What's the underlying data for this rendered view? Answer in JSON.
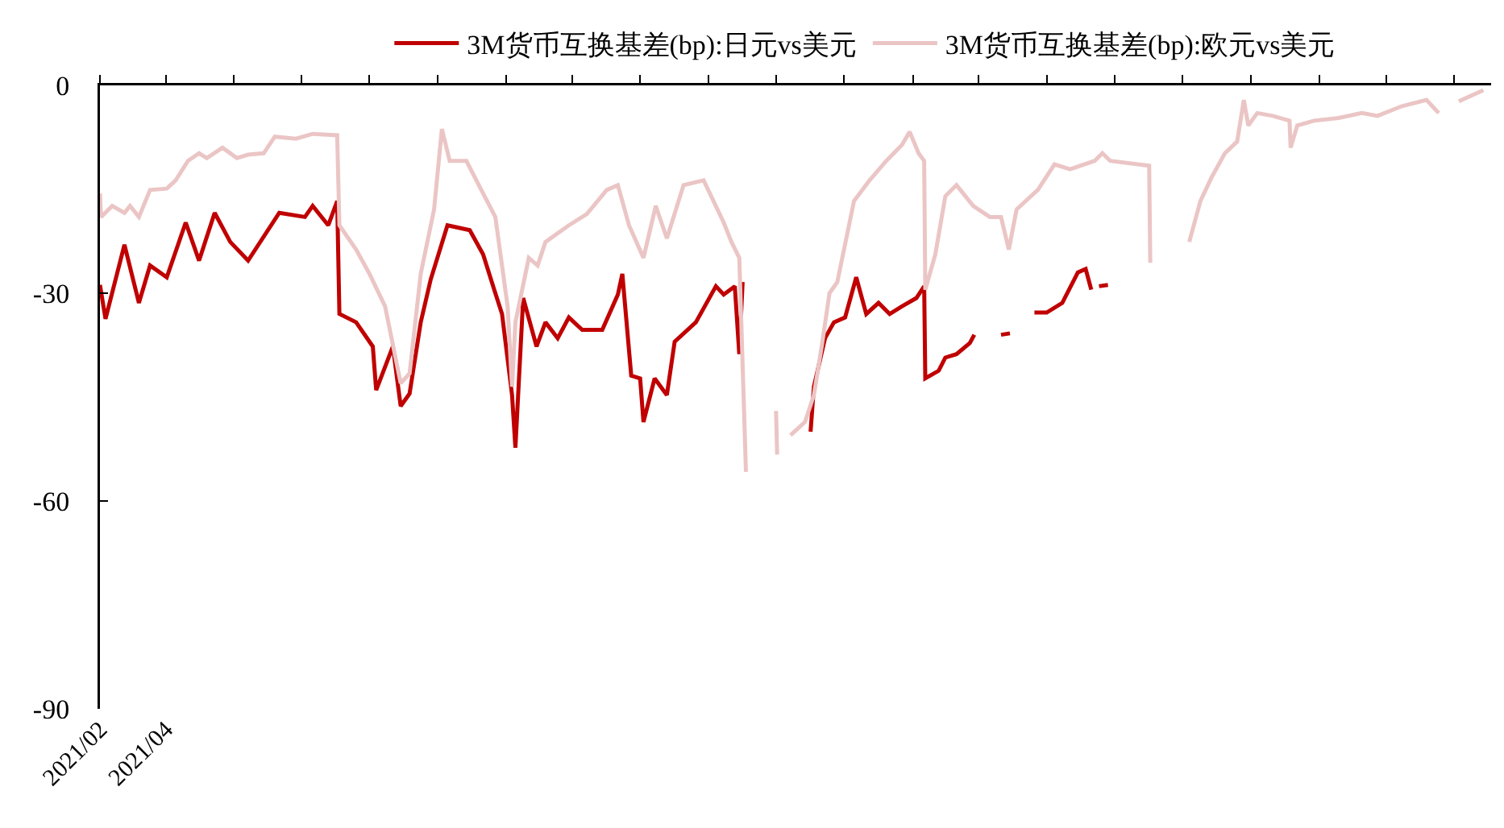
{
  "chart_data": {
    "type": "line",
    "xlim": [
      "2021-02-01",
      "2024-07-04"
    ],
    "xticks": [
      {
        "value": "2021-02-01",
        "label": "2021/02"
      },
      {
        "value": "2021-04-01",
        "label": "2021/04"
      },
      {
        "value": "2021-06-01",
        "label": null
      },
      {
        "value": "2021-08-01",
        "label": null
      },
      {
        "value": "2021-10-01",
        "label": null
      },
      {
        "value": "2021-12-01",
        "label": null
      },
      {
        "value": "2022-02-01",
        "label": null
      },
      {
        "value": "2022-04-01",
        "label": null
      },
      {
        "value": "2022-06-01",
        "label": null
      },
      {
        "value": "2022-08-01",
        "label": null
      },
      {
        "value": "2022-10-01",
        "label": null
      },
      {
        "value": "2022-12-01",
        "label": null
      },
      {
        "value": "2023-02-01",
        "label": null
      },
      {
        "value": "2023-04-01",
        "label": null
      },
      {
        "value": "2023-06-01",
        "label": null
      },
      {
        "value": "2023-08-01",
        "label": null
      },
      {
        "value": "2023-10-01",
        "label": null
      },
      {
        "value": "2023-12-01",
        "label": null
      },
      {
        "value": "2024-02-01",
        "label": null
      },
      {
        "value": "2024-04-01",
        "label": null
      },
      {
        "value": "2024-06-01",
        "label": null
      }
    ],
    "ylim": [
      -90,
      0
    ],
    "yticks": [
      -90,
      -60,
      -30,
      0
    ],
    "grid": false,
    "legend": "top",
    "marker": "none",
    "line_style": "solid",
    "series": [
      {
        "name": "3M货币互换基差(bp):日元vs美元",
        "color": "#c00000",
        "x": [
          "2021-02-01",
          "2021-02-06",
          "2021-02-23",
          "2021-03-08",
          "2021-03-18",
          "2021-04-02",
          "2021-04-19",
          "2021-05-01",
          "2021-05-15",
          "2021-05-29",
          "2021-06-14",
          "2021-07-12",
          "2021-08-04",
          "2021-08-11",
          "2021-08-25",
          "2021-09-02",
          "2021-09-04",
          "2021-09-19",
          "2021-10-04",
          "2021-10-07",
          "2021-10-22",
          "2021-10-29",
          "2021-11-06",
          "2021-11-16",
          "2021-11-25",
          "2021-12-10",
          "2021-12-30",
          "2022-01-11",
          "2022-01-21",
          "2022-01-28",
          "2022-02-06",
          "2022-02-09",
          "2022-02-16",
          "2022-02-28",
          "2022-03-08",
          "2022-03-19",
          "2022-03-29",
          "2022-04-10",
          "2022-04-28",
          "2022-05-12",
          "2022-05-16",
          "2022-05-24",
          "2022-06-01",
          "2022-06-04",
          "2022-06-14",
          "2022-06-25",
          "2022-07-02",
          "2022-07-21",
          "2022-08-08",
          "2022-08-15",
          "2022-08-25",
          "2022-08-29",
          "2022-09-01",
          "2022-10-01",
          "2022-11-01",
          "2022-11-04",
          "2022-11-14",
          "2022-11-22",
          "2022-12-02",
          "2022-12-12",
          "2022-12-21",
          "2023-01-01",
          "2023-01-11",
          "2023-01-22",
          "2023-02-04",
          "2023-02-11",
          "2023-02-12",
          "2023-02-24",
          "2023-03-02",
          "2023-03-12",
          "2023-03-24",
          "2023-03-28",
          "2023-04-10",
          "2023-04-21",
          "2023-04-29",
          "2023-05-05",
          "2023-05-21",
          "2023-06-01",
          "2023-06-15",
          "2023-06-29",
          "2023-07-06",
          "2023-07-11",
          "2023-07-15",
          "2023-07-18",
          "2023-07-26"
        ],
        "values": [
          -28.8,
          -33.7,
          -23,
          -31.4,
          -26,
          -27.7,
          -19.8,
          -25.3,
          -18.4,
          -22.6,
          -25.3,
          -18.4,
          -19,
          -17.4,
          -20.2,
          -16.7,
          -33,
          -34.2,
          -37.7,
          -44,
          -37.7,
          -46.3,
          -44.5,
          -34.2,
          -28,
          -20.2,
          -20.9,
          -24.4,
          -29.5,
          -33,
          -44.7,
          -52.3,
          -30.7,
          -37.7,
          -34.2,
          -36.5,
          -33.5,
          -35.3,
          -35.3,
          -30.2,
          -27.2,
          -41.9,
          -42.3,
          -48.6,
          -42.3,
          -44.7,
          -37,
          -34.2,
          -29,
          -30.2,
          -29,
          -38.8,
          -28.4,
          null,
          -50,
          -43.5,
          -36.5,
          -34.2,
          -33.5,
          -27.7,
          -33,
          -31.4,
          -33,
          -31.9,
          -30.7,
          -29,
          -42.3,
          -41.2,
          -39.3,
          -38.8,
          -37.2,
          -36,
          null,
          -36,
          -35.8,
          null,
          -32.8,
          -32.8,
          -31.4,
          -27,
          -26.5,
          -29.5,
          null,
          -29,
          -28.8
        ]
      },
      {
        "name": "3M货币互换基差(bp):欧元vs美元",
        "color": "#ebc5c5",
        "x": [
          "2021-02-01",
          "2021-02-02",
          "2021-02-12",
          "2021-02-23",
          "2021-02-28",
          "2021-03-08",
          "2021-03-18",
          "2021-04-02",
          "2021-04-10",
          "2021-04-21",
          "2021-05-01",
          "2021-05-08",
          "2021-05-22",
          "2021-06-04",
          "2021-06-14",
          "2021-06-28",
          "2021-07-08",
          "2021-07-27",
          "2021-08-11",
          "2021-09-02",
          "2021-09-04",
          "2021-09-19",
          "2021-10-01",
          "2021-10-15",
          "2021-10-29",
          "2021-11-06",
          "2021-11-16",
          "2021-11-28",
          "2021-12-05",
          "2021-12-12",
          "2021-12-27",
          "2022-01-11",
          "2022-01-22",
          "2022-02-02",
          "2022-02-06",
          "2022-02-09",
          "2022-02-21",
          "2022-03-01",
          "2022-03-08",
          "2022-03-29",
          "2022-04-14",
          "2022-05-02",
          "2022-05-12",
          "2022-05-22",
          "2022-06-04",
          "2022-06-15",
          "2022-06-25",
          "2022-07-10",
          "2022-07-28",
          "2022-08-15",
          "2022-08-22",
          "2022-08-29",
          "2022-09-04",
          "2022-09-20",
          "2022-10-01",
          "2022-10-02",
          "2022-10-10",
          "2022-10-14",
          "2022-10-27",
          "2022-11-04",
          "2022-11-11",
          "2022-11-18",
          "2022-11-25",
          "2022-12-10",
          "2022-12-24",
          "2023-01-08",
          "2023-01-22",
          "2023-01-29",
          "2023-02-06",
          "2023-02-11",
          "2023-02-12",
          "2023-02-21",
          "2023-03-02",
          "2023-03-12",
          "2023-03-27",
          "2023-04-11",
          "2023-04-21",
          "2023-04-28",
          "2023-05-05",
          "2023-05-24",
          "2023-06-08",
          "2023-06-22",
          "2023-07-14",
          "2023-07-21",
          "2023-07-28",
          "2023-09-01",
          "2023-09-02",
          "2023-09-20",
          "2023-10-07",
          "2023-10-17",
          "2023-10-27",
          "2023-11-08",
          "2023-11-19",
          "2023-11-25",
          "2023-11-29",
          "2023-12-07",
          "2023-12-21",
          "2024-01-05",
          "2024-01-06",
          "2024-01-12",
          "2024-01-27",
          "2024-02-18",
          "2024-03-10",
          "2024-03-24",
          "2024-04-15",
          "2024-05-07",
          "2024-05-18",
          "2024-05-25",
          "2024-06-05",
          "2024-06-27"
        ],
        "values": [
          -15.6,
          -19,
          -17.4,
          -18.4,
          -17.4,
          -19,
          -15.1,
          -14.9,
          -13.7,
          -10.9,
          -9.8,
          -10.5,
          -9,
          -10.5,
          -10,
          -9.8,
          -7.4,
          -7.7,
          -7,
          -7.2,
          -20.2,
          -23.7,
          -27.2,
          -31.9,
          -43,
          -41.6,
          -27.2,
          -17.9,
          -6.3,
          -10.9,
          -10.9,
          -15.6,
          -19,
          -31.9,
          -43.5,
          -34.2,
          -24.9,
          -26,
          -22.6,
          -20.2,
          -18.6,
          -15.1,
          -14.4,
          -20.2,
          -24.9,
          -17.4,
          -22.1,
          -14.4,
          -13.7,
          -19.8,
          -22.6,
          -24.9,
          -55.8,
          null,
          -47,
          -53.3,
          null,
          -50.5,
          -48.6,
          -44.7,
          -37.7,
          -30,
          -28.4,
          -16.7,
          -13.7,
          -10.9,
          -8.6,
          -6.7,
          -9.8,
          -10.9,
          -29.5,
          -24.4,
          -16,
          -14.4,
          -17.4,
          -19,
          -19,
          -23.7,
          -17.9,
          -15.1,
          -11.4,
          -12.1,
          -10.9,
          -9.8,
          -10.9,
          -11.6,
          -25.6,
          null,
          -22.6,
          -16.7,
          -13.3,
          -9.8,
          -8.1,
          -2.1,
          -5.8,
          -4,
          -4.4,
          -5.1,
          -9,
          -5.8,
          -5.1,
          -4.7,
          -4,
          -4.4,
          -3,
          -2.1,
          -4,
          null,
          -2.3,
          -0.7
        ]
      }
    ]
  }
}
